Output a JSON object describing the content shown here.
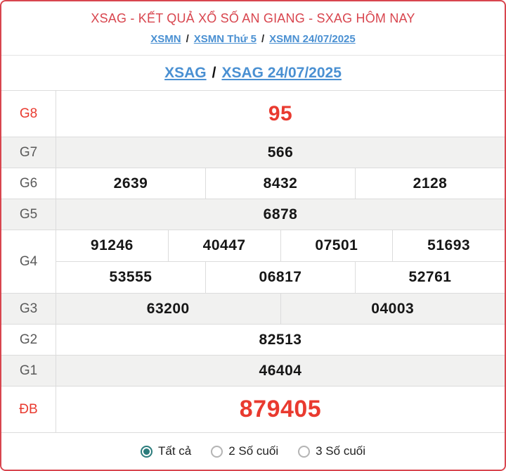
{
  "page": {
    "title": "XSAG - KẾT QUẢ XỔ SỐ AN GIANG - SXAG HÔM NAY",
    "breadcrumb": {
      "items": [
        "XSMN",
        "XSMN Thứ 5",
        "XSMN 24/07/2025"
      ],
      "separator": "/"
    },
    "subtitle": {
      "items": [
        "XSAG",
        "XSAG 24/07/2025"
      ],
      "separator": "/"
    }
  },
  "results": {
    "rows": [
      {
        "label": "G8",
        "lines": [
          [
            "95"
          ]
        ],
        "highlight": true
      },
      {
        "label": "G7",
        "lines": [
          [
            "566"
          ]
        ]
      },
      {
        "label": "G6",
        "lines": [
          [
            "2639",
            "8432",
            "2128"
          ]
        ]
      },
      {
        "label": "G5",
        "lines": [
          [
            "6878"
          ]
        ]
      },
      {
        "label": "G4",
        "lines": [
          [
            "91246",
            "40447",
            "07501",
            "51693"
          ],
          [
            "53555",
            "06817",
            "52761"
          ]
        ]
      },
      {
        "label": "G3",
        "lines": [
          [
            "63200",
            "04003"
          ]
        ]
      },
      {
        "label": "G2",
        "lines": [
          [
            "82513"
          ]
        ]
      },
      {
        "label": "G1",
        "lines": [
          [
            "46404"
          ]
        ]
      },
      {
        "label": "ĐB",
        "lines": [
          [
            "879405"
          ]
        ],
        "highlight": true,
        "xl": true
      }
    ]
  },
  "footer": {
    "options": [
      {
        "label": "Tất cả",
        "selected": true
      },
      {
        "label": "2 Số cuối",
        "selected": false
      },
      {
        "label": "3 Số cuối",
        "selected": false
      }
    ]
  },
  "colors": {
    "accent_red": "#d8454e",
    "link_blue": "#4a90d2",
    "number_red": "#e93a2f",
    "radio_teal": "#2b7c7c",
    "shade_gray": "#f1f1f0"
  }
}
